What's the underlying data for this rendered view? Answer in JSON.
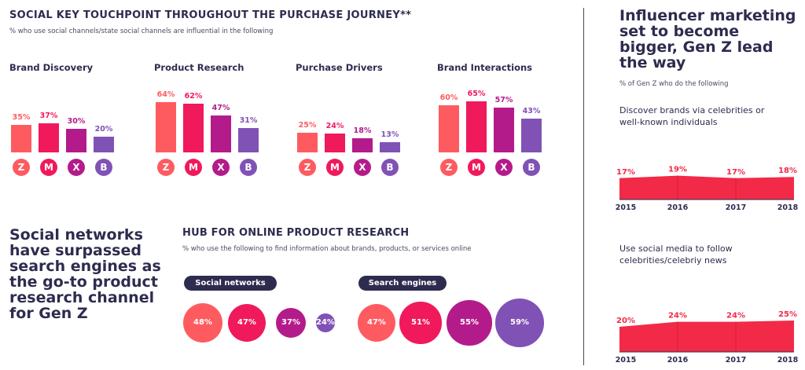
{
  "left_section": {
    "title": "SOCIAL KEY TOUCHPOINT THROUGHOUT THE PURCHASE JOURNEY**",
    "subtitle": "% who use social channels/state social channels are influential in the following"
  },
  "generations": [
    "Z",
    "M",
    "X",
    "B"
  ],
  "colors": {
    "Z": "#fe5b60",
    "M": "#f0195c",
    "X": "#b41b8a",
    "B": "#8152b5",
    "navy": "#2d2c4f",
    "area": "#f22a48"
  },
  "hub": {
    "title": "HUB FOR ONLINE PRODUCT RESEARCH",
    "subtitle": "% who use the following to find information about brands, products, or services online",
    "social_label": "Social networks",
    "search_label": "Search engines"
  },
  "headline_left": "Social networks have surpassed search engines as the go-to product research channel for Gen Z",
  "right_section": {
    "title": "Influencer marketing set to become bigger, Gen Z lead the way",
    "subtitle": "% of Gen Z who do the following"
  },
  "chart_data": [
    {
      "type": "bar",
      "title": "Brand Discovery",
      "categories": [
        "Z",
        "M",
        "X",
        "B"
      ],
      "values": [
        35,
        37,
        30,
        20
      ],
      "labels": [
        "35%",
        "37%",
        "30%",
        "20%"
      ]
    },
    {
      "type": "bar",
      "title": "Product Research",
      "categories": [
        "Z",
        "M",
        "X",
        "B"
      ],
      "values": [
        64,
        62,
        47,
        31
      ],
      "labels": [
        "64%",
        "62%",
        "47%",
        "31%"
      ]
    },
    {
      "type": "bar",
      "title": "Purchase Drivers",
      "categories": [
        "Z",
        "M",
        "X",
        "B"
      ],
      "values": [
        25,
        24,
        18,
        13
      ],
      "labels": [
        "25%",
        "24%",
        "18%",
        "13%"
      ]
    },
    {
      "type": "bar",
      "title": "Brand Interactions",
      "categories": [
        "Z",
        "M",
        "X",
        "B"
      ],
      "values": [
        60,
        65,
        57,
        43
      ],
      "labels": [
        "60%",
        "65%",
        "57%",
        "43%"
      ]
    },
    {
      "type": "scatter",
      "title": "Social networks",
      "categories": [
        "Z",
        "M",
        "X",
        "B"
      ],
      "values": [
        48,
        47,
        37,
        24
      ],
      "labels": [
        "48%",
        "47%",
        "37%",
        "24%"
      ]
    },
    {
      "type": "scatter",
      "title": "Search engines",
      "categories": [
        "Z",
        "M",
        "X",
        "B"
      ],
      "values": [
        47,
        51,
        55,
        59
      ],
      "labels": [
        "47%",
        "51%",
        "55%",
        "59%"
      ]
    },
    {
      "type": "area",
      "title": "Discover brands via celebrities or well-known individuals",
      "x": [
        "2015",
        "2016",
        "2017",
        "2018"
      ],
      "values": [
        17,
        19,
        17,
        18
      ],
      "labels": [
        "17%",
        "19%",
        "17%",
        "18%"
      ]
    },
    {
      "type": "area",
      "title": "Use social media to follow celebrities/celebriy news",
      "x": [
        "2015",
        "2016",
        "2017",
        "2018"
      ],
      "values": [
        20,
        24,
        24,
        25
      ],
      "labels": [
        "20%",
        "24%",
        "24%",
        "25%"
      ]
    }
  ]
}
